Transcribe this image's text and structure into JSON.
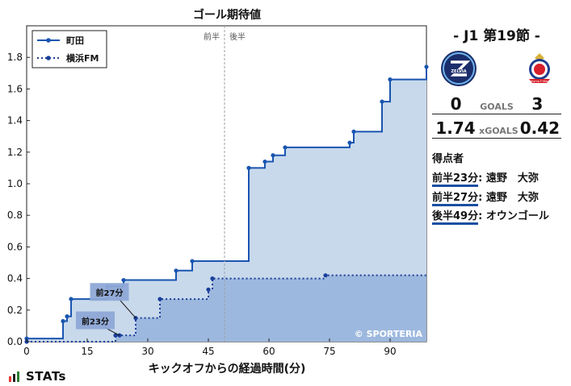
{
  "chart_data": {
    "type": "step-area",
    "title": "ゴール期待値",
    "xlabel": "キックオフからの経過時間(分)",
    "ylabel": "",
    "xlim": [
      0,
      99
    ],
    "ylim": [
      0,
      2.0
    ],
    "xticks": [
      0,
      15,
      30,
      45,
      60,
      75,
      90
    ],
    "yticks": [
      0.0,
      0.2,
      0.4,
      0.6,
      0.8,
      1.0,
      1.2,
      1.4,
      1.6,
      1.8
    ],
    "half_marker": {
      "x": 49,
      "left_label": "前半",
      "right_label": "後半"
    },
    "legend_position": "top-left",
    "watermark": "© SPORTERIA",
    "series": [
      {
        "name": "町田",
        "line_style": "solid",
        "line_color": "#1a55b0",
        "fill_color": "#c8d9ec",
        "x": [
          0,
          9,
          10,
          11,
          20,
          24,
          37,
          41,
          55,
          59,
          61,
          64,
          80,
          81,
          88,
          90,
          99
        ],
        "y": [
          0.02,
          0.13,
          0.16,
          0.27,
          0.35,
          0.39,
          0.45,
          0.51,
          1.1,
          1.14,
          1.18,
          1.23,
          1.26,
          1.33,
          1.52,
          1.66,
          1.74
        ]
      },
      {
        "name": "横浜FM",
        "line_style": "dotted",
        "line_color": "#1a3f99",
        "fill_color": "#9db8de",
        "x": [
          0,
          22,
          23,
          27,
          33,
          45,
          46,
          74,
          99
        ],
        "y": [
          0.0,
          0.04,
          0.04,
          0.15,
          0.27,
          0.33,
          0.4,
          0.42,
          0.42
        ]
      }
    ],
    "annotations": [
      {
        "text": "前27分",
        "x": 27,
        "y": 0.15,
        "label_x": 20.5,
        "label_y": 0.31
      },
      {
        "text": "前23分",
        "x": 23,
        "y": 0.04,
        "label_x": 17,
        "label_y": 0.13
      }
    ]
  },
  "match": {
    "title": "- J1 第19節 -",
    "home_goals": "0",
    "away_goals": "3",
    "goals_label": "GOALS",
    "home_xg": "1.74",
    "away_xg": "0.42",
    "xg_label": "xGOALS",
    "home_crest_text": "ZELVIA",
    "away_crest_text": "Yokohama F·Marinos"
  },
  "scorers": {
    "title": "得点者",
    "items": [
      {
        "time": "前半23分",
        "name": ": 遠野　大弥"
      },
      {
        "time": "前半27分",
        "name": ": 遠野　大弥"
      },
      {
        "time": "後半49分",
        "name": ": オウンゴール"
      }
    ]
  },
  "brand": {
    "name": "STATs"
  }
}
